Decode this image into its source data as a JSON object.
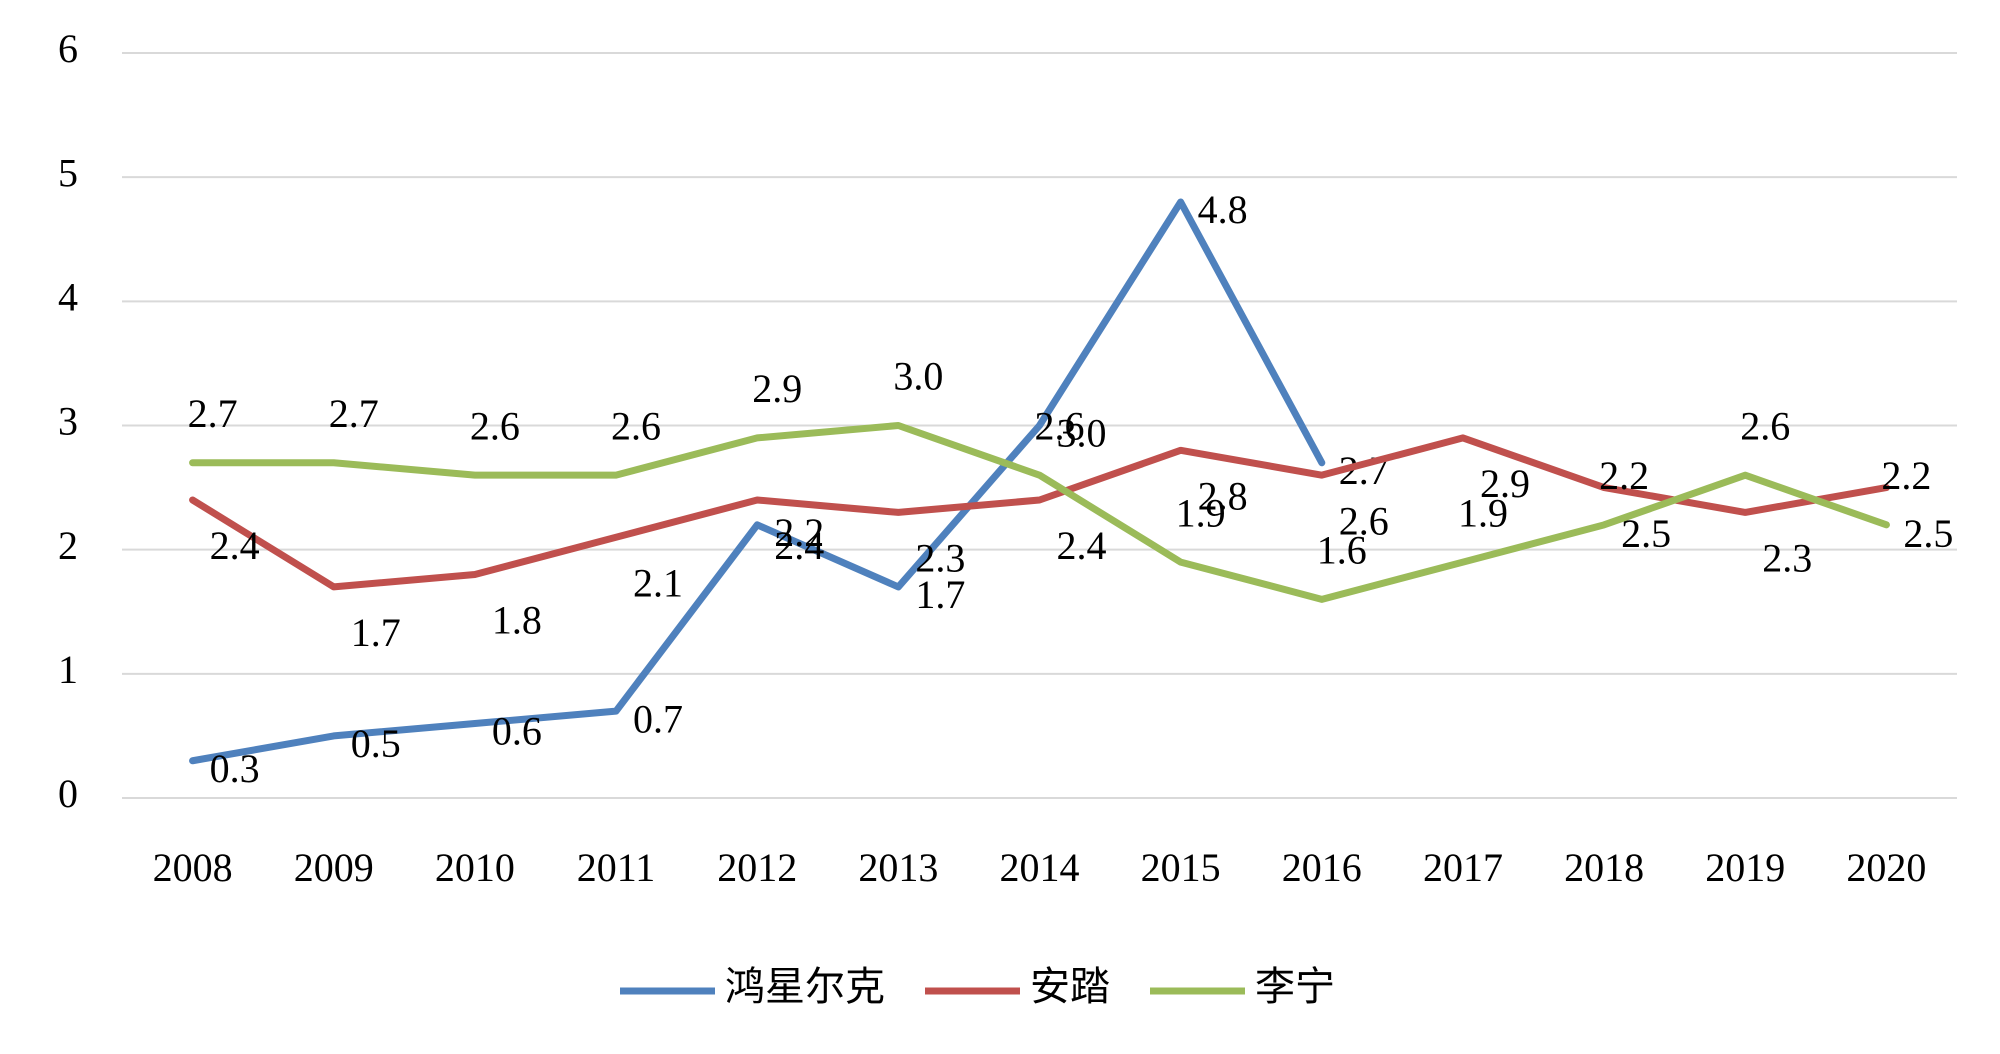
{
  "chart_data": {
    "type": "line",
    "categories": [
      "2008",
      "2009",
      "2010",
      "2011",
      "2012",
      "2013",
      "2014",
      "2015",
      "2016",
      "2017",
      "2018",
      "2019",
      "2020"
    ],
    "series": [
      {
        "name": "鸿星尔克",
        "color": "#4f81bd",
        "values": [
          0.3,
          0.5,
          0.6,
          0.7,
          2.2,
          1.7,
          3.0,
          4.8,
          2.7,
          null,
          null,
          null,
          null
        ],
        "value_labels": [
          "0.3",
          "0.5",
          "0.6",
          "0.7",
          "2.2",
          "1.7",
          "3.0",
          "4.8",
          "2.7",
          null,
          null,
          null,
          null
        ]
      },
      {
        "name": "安踏",
        "color": "#c0504d",
        "values": [
          2.4,
          1.7,
          1.8,
          2.1,
          2.4,
          2.3,
          2.4,
          2.8,
          2.6,
          2.9,
          2.5,
          2.3,
          2.5
        ],
        "value_labels": [
          "2.4",
          "1.7",
          "1.8",
          "2.1",
          "2.4",
          "2.3",
          "2.4",
          "2.8",
          "2.6",
          "2.9",
          "2.5",
          "2.3",
          "2.5"
        ]
      },
      {
        "name": "李宁",
        "color": "#9bbb59",
        "values": [
          2.7,
          2.7,
          2.6,
          2.6,
          2.9,
          3.0,
          2.6,
          1.9,
          1.6,
          1.9,
          2.2,
          2.6,
          2.2
        ],
        "value_labels": [
          "2.7",
          "2.7",
          "2.6",
          "2.6",
          "2.9",
          "3.0",
          "2.6",
          "1.9",
          "1.6",
          "1.9",
          "2.2",
          "2.6",
          "2.2"
        ]
      }
    ],
    "ylim": [
      0,
      6
    ],
    "yticks": [
      0,
      1,
      2,
      3,
      4,
      5,
      6
    ],
    "grid": true,
    "legend": "bottom"
  }
}
